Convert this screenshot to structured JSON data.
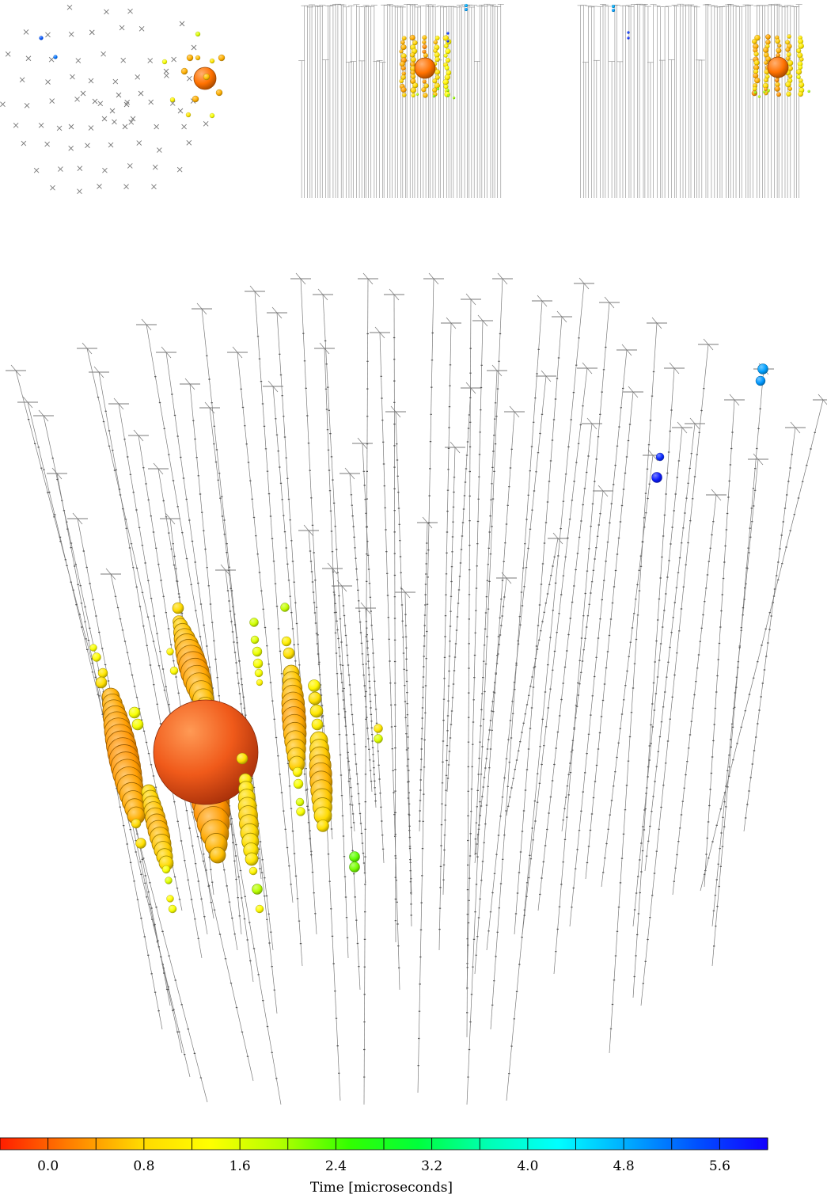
{
  "views": [
    {
      "id": "top",
      "role": "top-view inset"
    },
    {
      "id": "side-1",
      "role": "side-view inset"
    },
    {
      "id": "side-2",
      "role": "side-view inset"
    },
    {
      "id": "perspective",
      "role": "main 3d view"
    }
  ],
  "colorbar": {
    "title": "Time [microseconds]",
    "tick_labels": [
      "0.0",
      "0.8",
      "1.6",
      "2.4",
      "3.2",
      "4.0",
      "4.8",
      "5.6"
    ],
    "tick_values": [
      0.0,
      0.8,
      1.6,
      2.4,
      3.2,
      4.0,
      4.8,
      5.6
    ],
    "min": -0.4,
    "max": 6.0,
    "colormap": "jet (red = early, blue = late)",
    "stops": [
      "#ff1e00",
      "#ff7f00",
      "#ffd700",
      "#ffff00",
      "#b4ff00",
      "#32ff00",
      "#00ff3c",
      "#00ffb4",
      "#00ffff",
      "#00aaff",
      "#0050ff",
      "#1400ff"
    ]
  },
  "colors": {
    "string_line": "#7a7a7a",
    "background": "#ffffff"
  }
}
